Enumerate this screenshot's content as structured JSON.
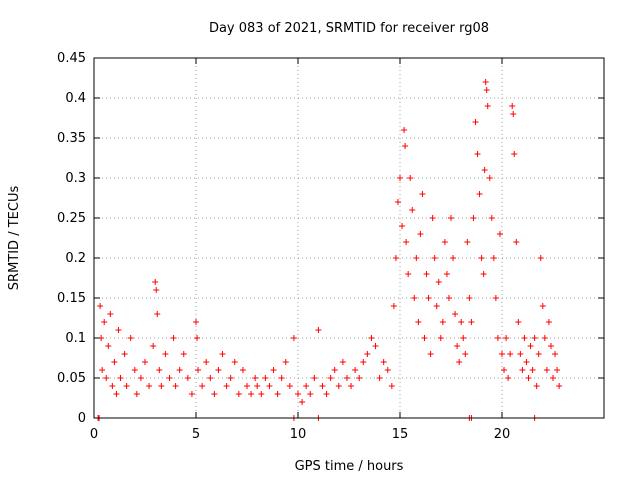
{
  "chart_data": {
    "type": "scatter",
    "title": "Day 083 of 2021, SRMTID for receiver rg08",
    "xlabel": "GPS time / hours",
    "ylabel": "SRMTID / TECUs",
    "xlim": [
      0,
      25
    ],
    "ylim": [
      0,
      0.45
    ],
    "xticks": [
      0,
      5,
      10,
      15,
      20
    ],
    "xtick_labels": [
      "0",
      "5",
      "10",
      "15",
      "20"
    ],
    "yticks": [
      0,
      0.05,
      0.1,
      0.15,
      0.2,
      0.25,
      0.3,
      0.35,
      0.4,
      0.45
    ],
    "ytick_labels": [
      "0",
      "0.05",
      "0.1",
      "0.15",
      "0.2",
      "0.25",
      "0.3",
      "0.35",
      "0.4",
      "0.45"
    ],
    "grid": true,
    "marker": "+",
    "color": "#ff0000",
    "series": [
      {
        "name": "SRMTID",
        "x": [
          0.3,
          0.35,
          0.4,
          0.5,
          0.6,
          0.7,
          0.8,
          0.9,
          1.0,
          1.1,
          1.2,
          1.3,
          1.5,
          1.6,
          1.8,
          2.0,
          2.1,
          2.3,
          2.5,
          2.7,
          2.9,
          3.0,
          3.05,
          3.1,
          3.2,
          3.3,
          3.5,
          3.7,
          3.9,
          4.0,
          4.2,
          4.4,
          4.6,
          4.8,
          5.0,
          5.05,
          5.1,
          5.3,
          5.5,
          5.7,
          5.9,
          6.1,
          6.3,
          6.5,
          6.7,
          6.9,
          7.1,
          7.3,
          7.5,
          7.7,
          7.9,
          8.0,
          8.2,
          8.4,
          8.6,
          8.8,
          9.0,
          9.2,
          9.4,
          9.6,
          9.8,
          10.0,
          10.2,
          10.4,
          10.6,
          10.8,
          11.0,
          11.2,
          11.4,
          11.6,
          11.8,
          12.0,
          12.2,
          12.4,
          12.6,
          12.8,
          13.0,
          13.2,
          13.4,
          13.6,
          13.8,
          14.0,
          14.2,
          14.4,
          14.6,
          14.7,
          14.8,
          14.9,
          15.0,
          15.1,
          15.2,
          15.25,
          15.3,
          15.4,
          15.5,
          15.6,
          15.7,
          15.8,
          15.9,
          16.0,
          16.1,
          16.2,
          16.3,
          16.4,
          16.5,
          16.6,
          16.7,
          16.8,
          16.9,
          17.0,
          17.1,
          17.2,
          17.3,
          17.4,
          17.5,
          17.6,
          17.7,
          17.8,
          17.9,
          18.0,
          18.1,
          18.2,
          18.3,
          18.4,
          18.5,
          18.6,
          18.7,
          18.8,
          18.9,
          19.0,
          19.1,
          19.15,
          19.2,
          19.25,
          19.3,
          19.4,
          19.5,
          19.6,
          19.7,
          19.8,
          19.9,
          20.0,
          20.1,
          20.2,
          20.3,
          20.4,
          20.5,
          20.55,
          20.6,
          20.7,
          20.8,
          20.9,
          21.0,
          21.1,
          21.2,
          21.3,
          21.4,
          21.5,
          21.6,
          21.7,
          21.8,
          21.9,
          22.0,
          22.1,
          22.2,
          22.3,
          22.4,
          22.5,
          22.6,
          22.7,
          22.8,
          0.2,
          0.25,
          9.8,
          11.0,
          18.4,
          18.5,
          21.6
        ],
        "y": [
          0.14,
          0.1,
          0.06,
          0.12,
          0.05,
          0.09,
          0.13,
          0.04,
          0.07,
          0.03,
          0.11,
          0.05,
          0.08,
          0.04,
          0.1,
          0.06,
          0.03,
          0.05,
          0.07,
          0.04,
          0.09,
          0.17,
          0.16,
          0.13,
          0.06,
          0.04,
          0.08,
          0.05,
          0.1,
          0.04,
          0.06,
          0.08,
          0.05,
          0.03,
          0.12,
          0.1,
          0.06,
          0.04,
          0.07,
          0.05,
          0.03,
          0.06,
          0.08,
          0.04,
          0.05,
          0.07,
          0.03,
          0.06,
          0.04,
          0.03,
          0.05,
          0.04,
          0.03,
          0.05,
          0.04,
          0.06,
          0.03,
          0.05,
          0.07,
          0.04,
          0.1,
          0.03,
          0.02,
          0.04,
          0.03,
          0.05,
          0.11,
          0.04,
          0.03,
          0.05,
          0.06,
          0.04,
          0.07,
          0.05,
          0.04,
          0.06,
          0.05,
          0.07,
          0.08,
          0.1,
          0.09,
          0.05,
          0.07,
          0.06,
          0.04,
          0.14,
          0.2,
          0.27,
          0.3,
          0.24,
          0.36,
          0.34,
          0.22,
          0.18,
          0.3,
          0.26,
          0.15,
          0.2,
          0.12,
          0.23,
          0.28,
          0.1,
          0.18,
          0.15,
          0.08,
          0.25,
          0.2,
          0.14,
          0.17,
          0.1,
          0.12,
          0.22,
          0.18,
          0.15,
          0.25,
          0.2,
          0.13,
          0.09,
          0.07,
          0.12,
          0.1,
          0.08,
          0.22,
          0.15,
          0.12,
          0.25,
          0.37,
          0.33,
          0.28,
          0.2,
          0.18,
          0.31,
          0.42,
          0.41,
          0.39,
          0.3,
          0.25,
          0.2,
          0.15,
          0.1,
          0.23,
          0.08,
          0.06,
          0.1,
          0.05,
          0.08,
          0.39,
          0.38,
          0.33,
          0.22,
          0.12,
          0.08,
          0.06,
          0.1,
          0.07,
          0.05,
          0.09,
          0.06,
          0.1,
          0.04,
          0.08,
          0.2,
          0.14,
          0.1,
          0.06,
          0.12,
          0.09,
          0.05,
          0.08,
          0.06,
          0.04,
          0.0,
          0.0,
          0.0,
          0.0,
          0.0,
          0.0,
          0.0
        ]
      }
    ]
  }
}
